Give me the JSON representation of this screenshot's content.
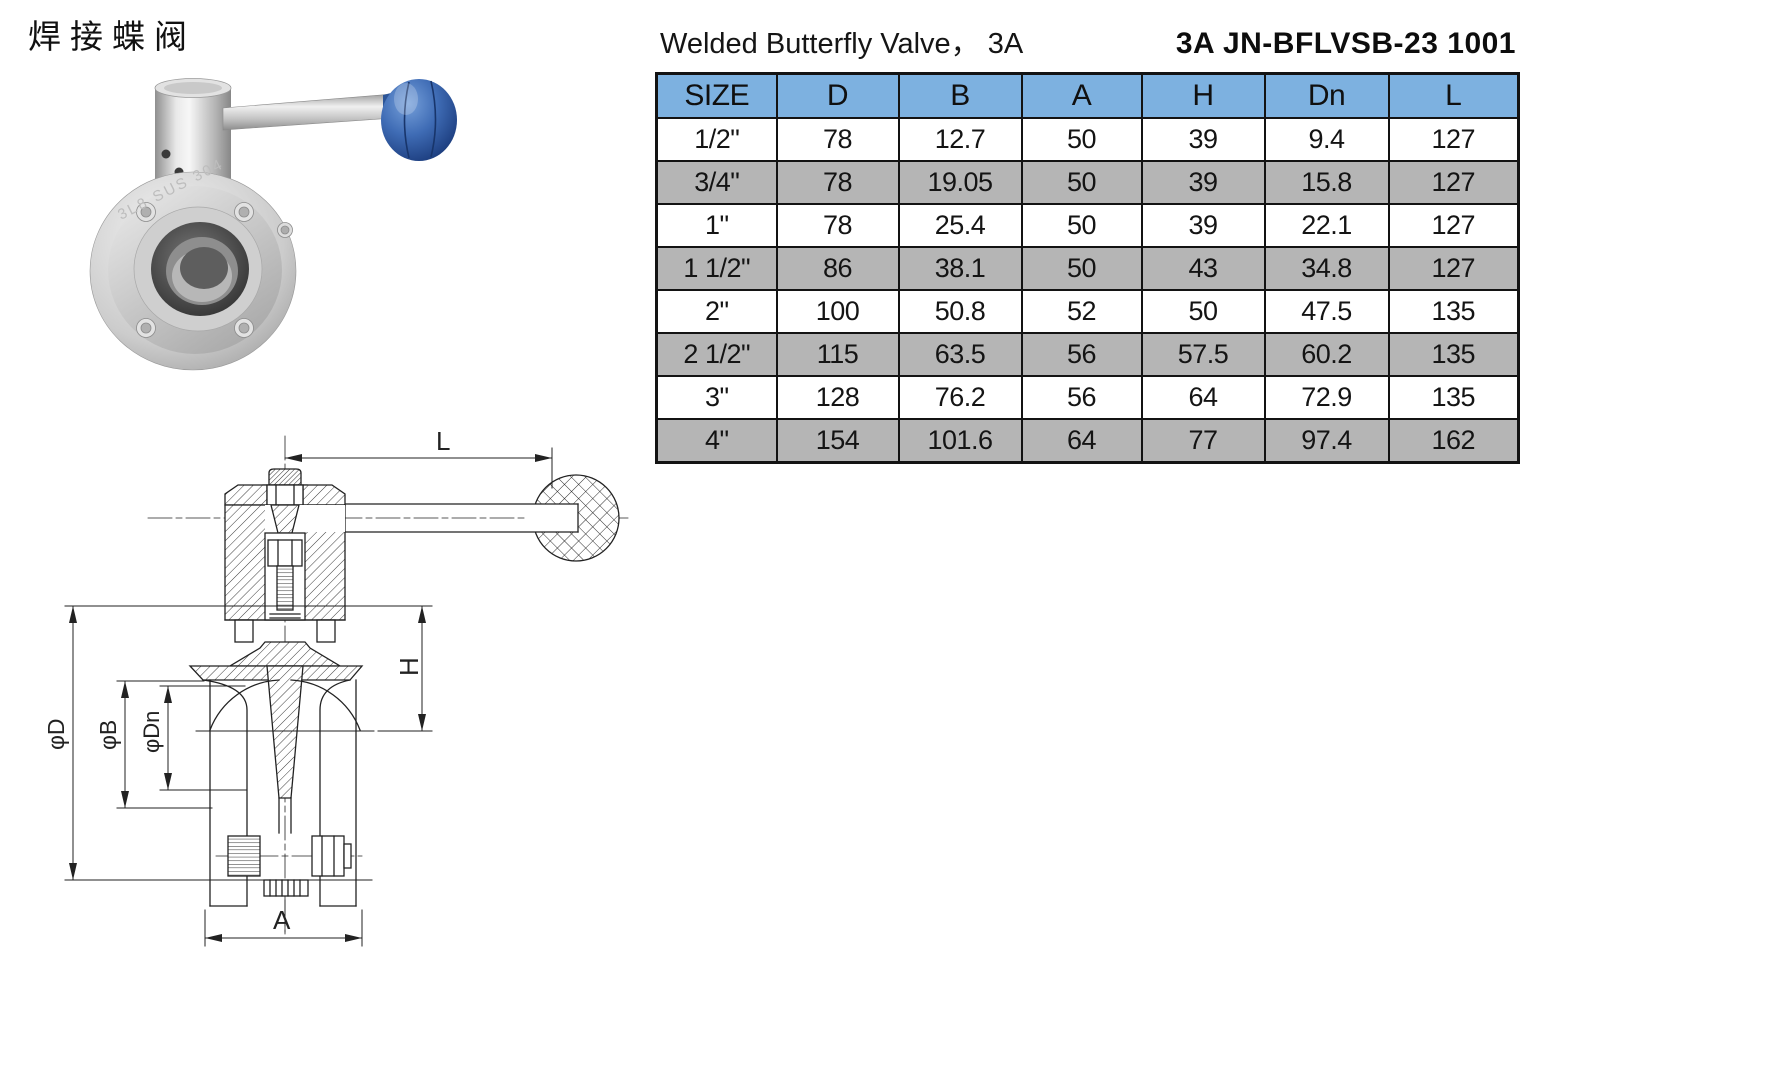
{
  "header": {
    "title_cn": "焊接蝶阀",
    "title_en": "Welded Butterfly Valve，  3A",
    "part_number": "3A JN-BFLVSB-23 1001"
  },
  "photo": {
    "engraving": "3L8 SUS 304",
    "knob_color": "#3f6cb5"
  },
  "drawing": {
    "labels": {
      "L": "L",
      "H": "H",
      "A": "A",
      "phi_d": "φD",
      "phi_b": "φB",
      "phi_dn": "φDn"
    }
  },
  "spec_table": {
    "columns": [
      "SIZE",
      "D",
      "B",
      "A",
      "H",
      "Dn",
      "L"
    ],
    "rows": [
      [
        "1/2\"",
        "78",
        "12.7",
        "50",
        "39",
        "9.4",
        "127"
      ],
      [
        "3/4\"",
        "78",
        "19.05",
        "50",
        "39",
        "15.8",
        "127"
      ],
      [
        "1\"",
        "78",
        "25.4",
        "50",
        "39",
        "22.1",
        "127"
      ],
      [
        "1 1/2\"",
        "86",
        "38.1",
        "50",
        "43",
        "34.8",
        "127"
      ],
      [
        "2\"",
        "100",
        "50.8",
        "52",
        "50",
        "47.5",
        "135"
      ],
      [
        "2 1/2\"",
        "115",
        "63.5",
        "56",
        "57.5",
        "60.2",
        "135"
      ],
      [
        "3\"",
        "128",
        "76.2",
        "56",
        "64",
        "72.9",
        "135"
      ],
      [
        "4\"",
        "154",
        "101.6",
        "64",
        "77",
        "97.4",
        "162"
      ]
    ],
    "colors": {
      "header_bg": "#7db1e0",
      "stripe_bg": "#b5b5b5",
      "border": "#131313"
    }
  }
}
